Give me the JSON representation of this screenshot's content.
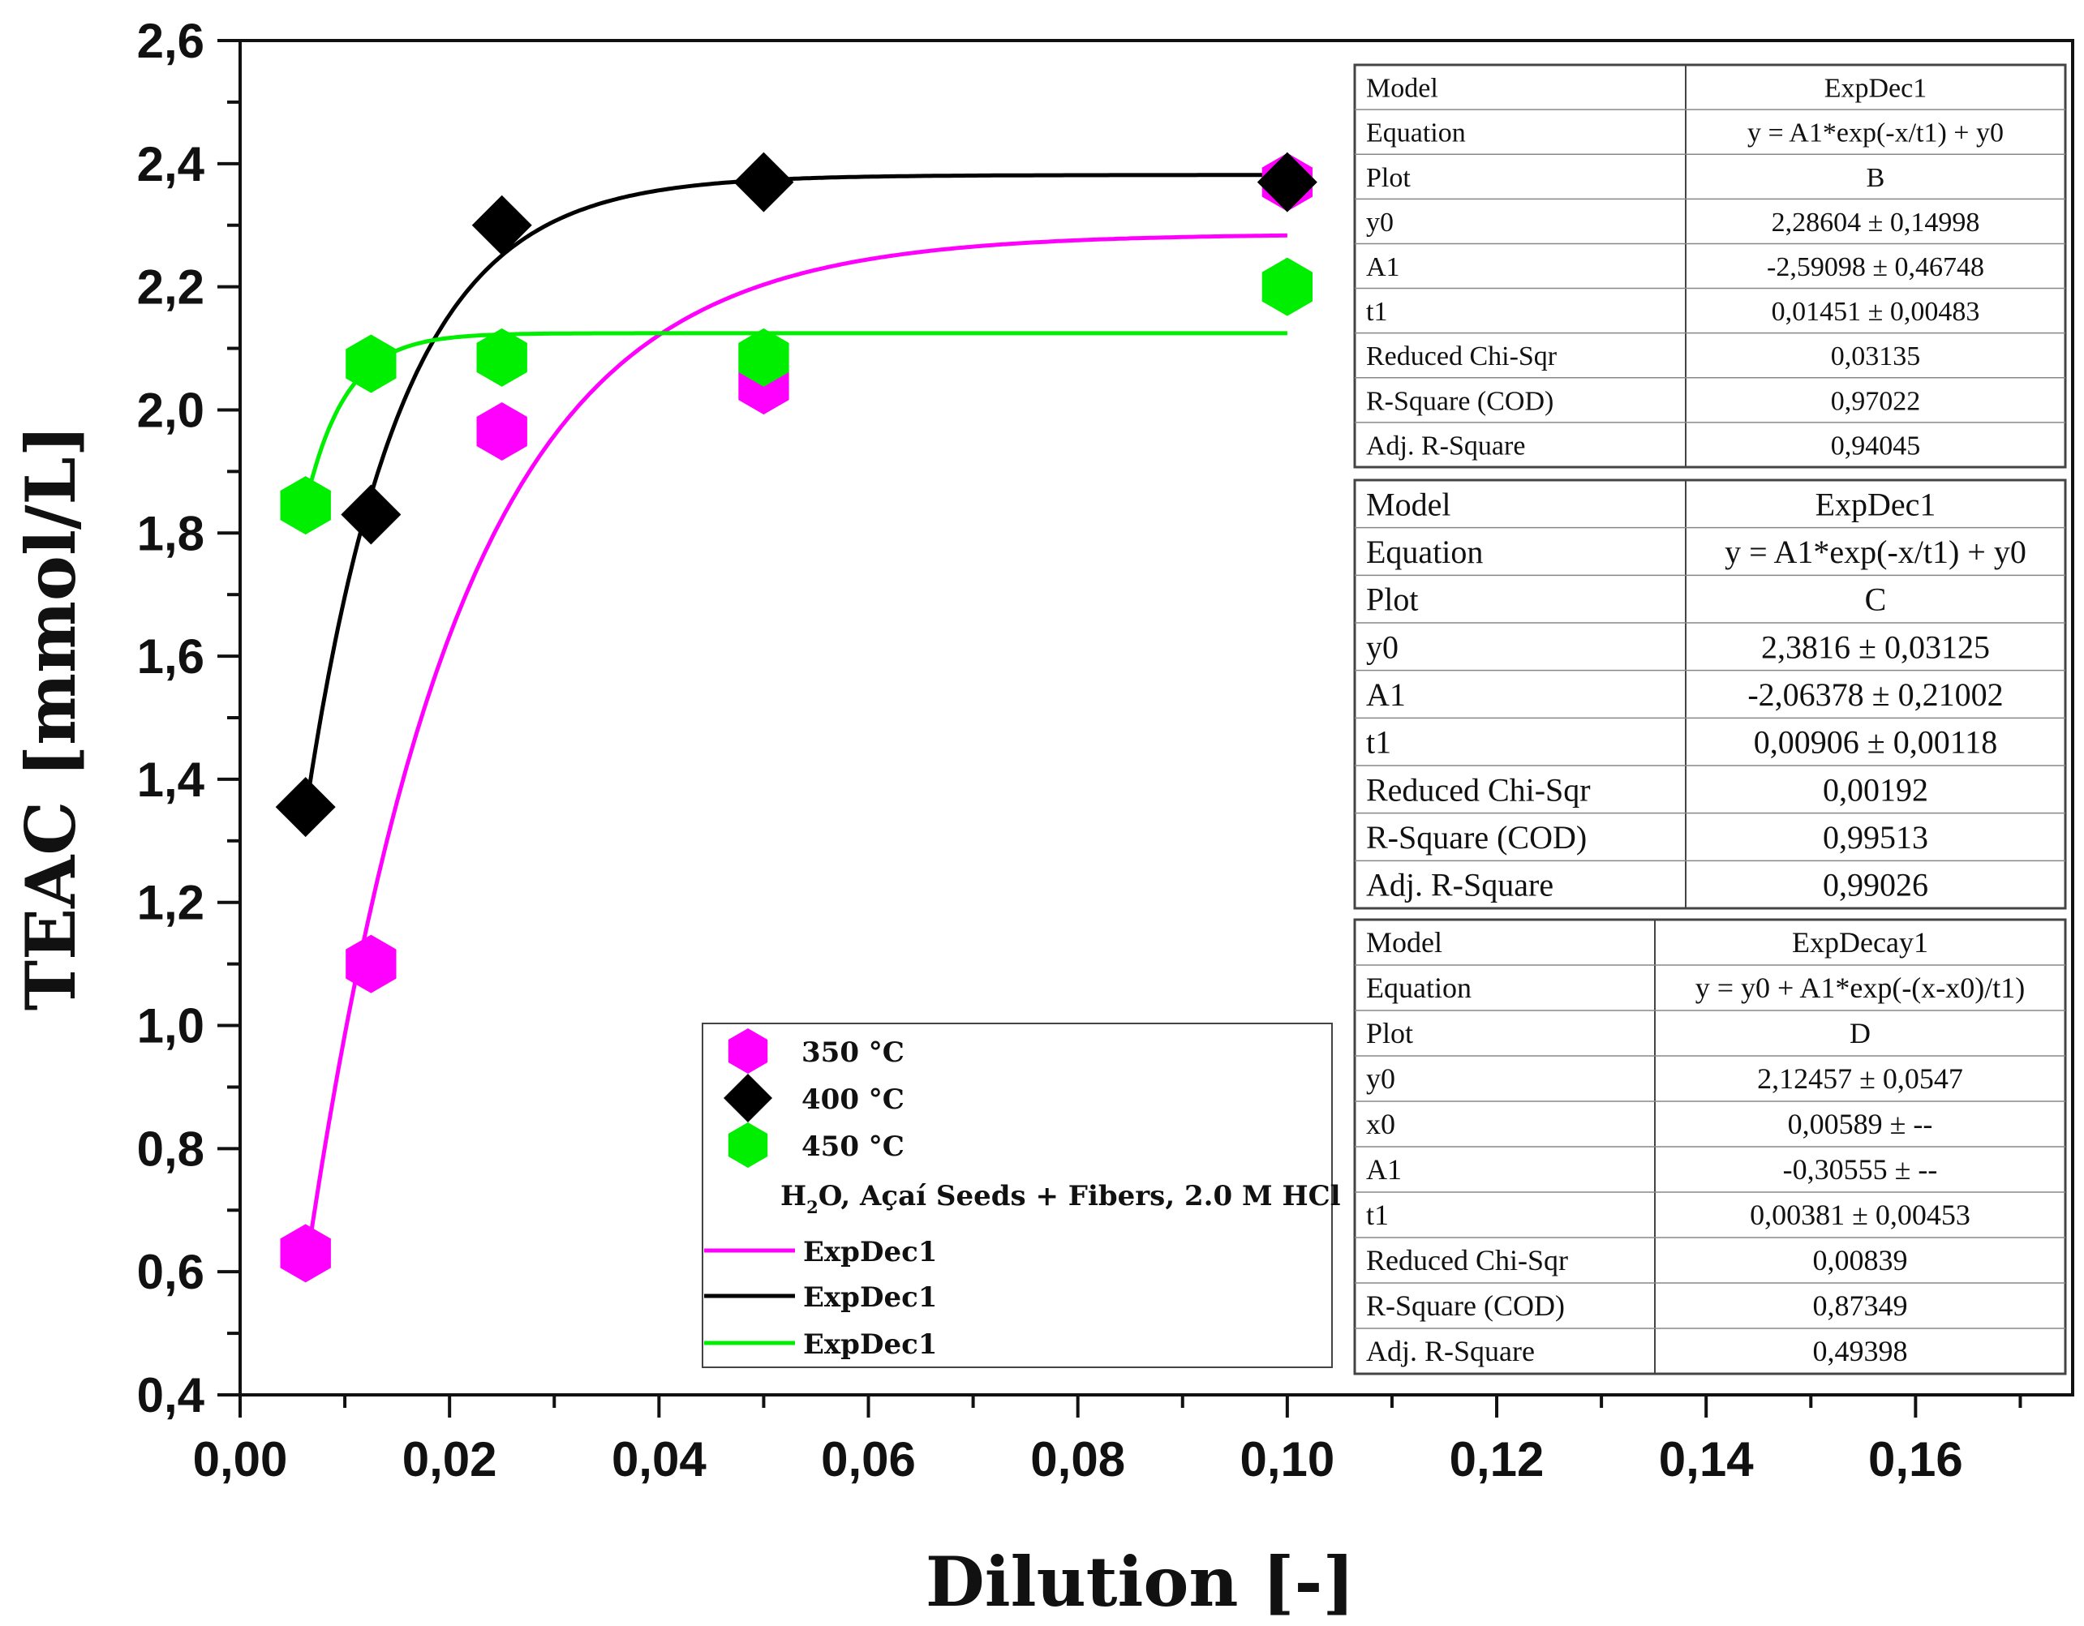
{
  "chart_data": {
    "type": "scatter",
    "title": "",
    "xlabel": "Dilution [-]",
    "ylabel": "TEAC [mmol/L]",
    "xlim": [
      0.0,
      0.175
    ],
    "ylim": [
      0.4,
      2.6
    ],
    "x_ticks": [
      "0,00",
      "0,02",
      "0,04",
      "0,06",
      "0,08",
      "0,10",
      "0,12",
      "0,14",
      "0,16"
    ],
    "y_ticks": [
      "0,4",
      "0,6",
      "0,8",
      "1,0",
      "1,2",
      "1,4",
      "1,6",
      "1,8",
      "2,0",
      "2,2",
      "2,4",
      "2,6"
    ],
    "series": [
      {
        "name": "350 °C",
        "color": "#ff00ff",
        "marker": "hexagon",
        "x": [
          0.00625,
          0.0125,
          0.025,
          0.05,
          0.1
        ],
        "y": [
          0.63,
          1.1,
          1.965,
          2.04,
          2.37
        ]
      },
      {
        "name": "400 °C",
        "color": "#000000",
        "marker": "diamond",
        "x": [
          0.00625,
          0.0125,
          0.025,
          0.05,
          0.1
        ],
        "y": [
          1.355,
          1.83,
          2.3,
          2.37,
          2.37
        ]
      },
      {
        "name": "450 °C",
        "color": "#00ee00",
        "marker": "hexagon",
        "x": [
          0.00625,
          0.0125,
          0.025,
          0.05,
          0.1
        ],
        "y": [
          1.845,
          2.075,
          2.085,
          2.085,
          2.2
        ]
      }
    ],
    "fits": [
      {
        "name": "ExpDec1",
        "color": "#ff00ff",
        "model": "expdec1",
        "y0": 2.28604,
        "A1": -2.59098,
        "t1": 0.01451,
        "x_range": [
          0.00625,
          0.1
        ]
      },
      {
        "name": "ExpDec1",
        "color": "#000000",
        "model": "expdec1",
        "y0": 2.3816,
        "A1": -2.06378,
        "t1": 0.00906,
        "x_range": [
          0.00625,
          0.1
        ]
      },
      {
        "name": "ExpDec1",
        "color": "#00ee00",
        "model": "expdecay1",
        "y0": 2.12457,
        "x0": 0.00589,
        "A1": -0.30555,
        "t1": 0.00381,
        "x_range": [
          0.00625,
          0.1
        ]
      }
    ],
    "legend": {
      "position": "bottom-center",
      "markers": [
        "350 °C",
        "400 °C",
        "450 °C"
      ],
      "subtitle_parts": [
        "H",
        "2",
        "O, Açaí Seeds + Fibers, 2.0 M HCl"
      ],
      "lines": [
        "ExpDec1",
        "ExpDec1",
        "ExpDec1"
      ]
    },
    "tables": [
      {
        "rows": [
          [
            "Model",
            "ExpDec1"
          ],
          [
            "Equation",
            "y = A1*exp(-x/t1) + y0"
          ],
          [
            "Plot",
            "B"
          ],
          [
            "y0",
            "2,28604 ± 0,14998"
          ],
          [
            "A1",
            "-2,59098 ± 0,46748"
          ],
          [
            "t1",
            "0,01451 ± 0,00483"
          ],
          [
            "Reduced Chi-Sqr",
            "0,03135"
          ],
          [
            "R-Square (COD)",
            "0,97022"
          ],
          [
            "Adj. R-Square",
            "0,94045"
          ]
        ]
      },
      {
        "rows": [
          [
            "Model",
            "ExpDec1"
          ],
          [
            "Equation",
            "y = A1*exp(-x/t1) + y0"
          ],
          [
            "Plot",
            "C"
          ],
          [
            "y0",
            "2,3816 ± 0,03125"
          ],
          [
            "A1",
            "-2,06378 ± 0,21002"
          ],
          [
            "t1",
            "0,00906 ± 0,00118"
          ],
          [
            "Reduced Chi-Sqr",
            "0,00192"
          ],
          [
            "R-Square (COD)",
            "0,99513"
          ],
          [
            "Adj. R-Square",
            "0,99026"
          ]
        ]
      },
      {
        "rows": [
          [
            "Model",
            "ExpDecay1"
          ],
          [
            "Equation",
            "y = y0 + A1*exp(-(x-x0)/t1)"
          ],
          [
            "Plot",
            "D"
          ],
          [
            "y0",
            "2,12457 ± 0,0547"
          ],
          [
            "x0",
            "0,00589 ± --"
          ],
          [
            "A1",
            "-0,30555 ± --"
          ],
          [
            "t1",
            "0,00381 ± 0,00453"
          ],
          [
            "Reduced Chi-Sqr",
            "0,00839"
          ],
          [
            "R-Square (COD)",
            "0,87349"
          ],
          [
            "Adj. R-Square",
            "0,49398"
          ]
        ]
      }
    ]
  }
}
